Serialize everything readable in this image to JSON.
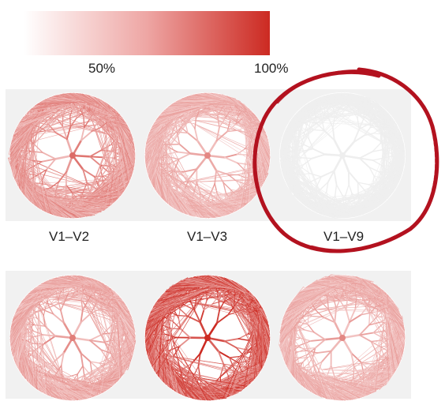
{
  "colorbar": {
    "ticks": [
      "50%",
      "100%"
    ],
    "min_color": "#ffffff",
    "max_color": "#cc2a22"
  },
  "rows": [
    {
      "panels": [
        {
          "label": "V1–V2",
          "intensity": 0.45
        },
        {
          "label": "V1–V3",
          "intensity": 0.3
        },
        {
          "label": "V1–V9",
          "intensity": 0.03
        }
      ]
    },
    {
      "panels": [
        {
          "label": "",
          "intensity": 0.35
        },
        {
          "label": "",
          "intensity": 0.8
        },
        {
          "label": "",
          "intensity": 0.3
        }
      ]
    }
  ],
  "annotation": {
    "shape": "hand-drawn circle",
    "target": "V1–V9",
    "color": "#b3121f"
  }
}
